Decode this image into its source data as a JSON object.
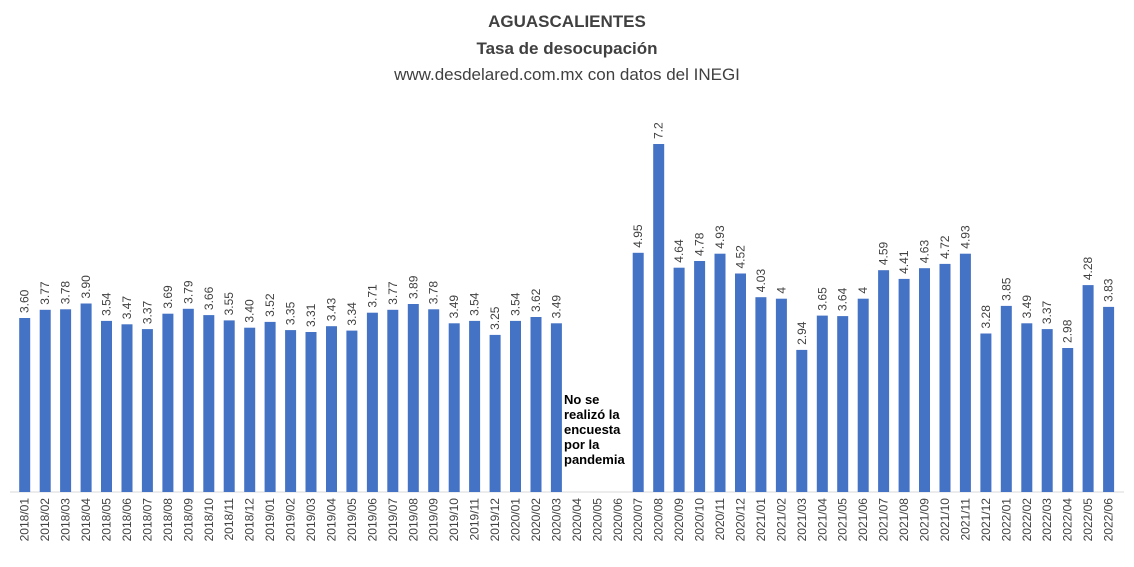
{
  "chart_data": {
    "type": "bar",
    "title": "AGUASCALIENTES",
    "subtitle": "Tasa de desocupación",
    "source": "www.desdelared.com.mx  con datos del INEGI",
    "note": "No se realizó la encuesta por la pandemia",
    "bar_color": "#4472C4",
    "grid": false,
    "categories": [
      "2018/01",
      "2018/02",
      "2018/03",
      "2018/04",
      "2018/05",
      "2018/06",
      "2018/07",
      "2018/08",
      "2018/09",
      "2018/10",
      "2018/11",
      "2018/12",
      "2019/01",
      "2019/02",
      "2019/03",
      "2019/04",
      "2019/05",
      "2019/06",
      "2019/07",
      "2019/08",
      "2019/09",
      "2019/10",
      "2019/11",
      "2019/12",
      "2020/01",
      "2020/02",
      "2020/03",
      "2020/04",
      "2020/05",
      "2020/06",
      "2020/07",
      "2020/08",
      "2020/09",
      "2020/10",
      "2020/11",
      "2020/12",
      "2021/01",
      "2021/02",
      "2021/03",
      "2021/04",
      "2021/05",
      "2021/06",
      "2021/07",
      "2021/08",
      "2021/09",
      "2021/10",
      "2021/11",
      "2021/12",
      "2022/01",
      "2022/02",
      "2022/03",
      "2022/04",
      "2022/05",
      "2022/06"
    ],
    "values": [
      3.6,
      3.77,
      3.78,
      3.9,
      3.54,
      3.47,
      3.37,
      3.69,
      3.79,
      3.66,
      3.55,
      3.4,
      3.52,
      3.35,
      3.31,
      3.43,
      3.34,
      3.71,
      3.77,
      3.89,
      3.78,
      3.49,
      3.54,
      3.25,
      3.54,
      3.62,
      3.49,
      null,
      null,
      null,
      4.95,
      7.2,
      4.64,
      4.78,
      4.93,
      4.52,
      4.03,
      4,
      2.94,
      3.65,
      3.64,
      4,
      4.59,
      4.41,
      4.63,
      4.72,
      4.93,
      3.28,
      3.85,
      3.49,
      3.37,
      2.98,
      4.28,
      3.83
    ],
    "labels": [
      "3.60",
      "3.77",
      "3.78",
      "3.90",
      "3.54",
      "3.47",
      "3.37",
      "3.69",
      "3.79",
      "3.66",
      "3.55",
      "3.40",
      "3.52",
      "3.35",
      "3.31",
      "3.43",
      "3.34",
      "3.71",
      "3.77",
      "3.89",
      "3.78",
      "3.49",
      "3.54",
      "3.25",
      "3.54",
      "3.62",
      "3.49",
      "",
      "",
      "",
      "4.95",
      "7.2",
      "4.64",
      "4.78",
      "4.93",
      "4.52",
      "4.03",
      "4",
      "2.94",
      "3.65",
      "3.64",
      "4",
      "4.59",
      "4.41",
      "4.63",
      "4.72",
      "4.93",
      "3.28",
      "3.85",
      "3.49",
      "3.37",
      "2.98",
      "4.28",
      "3.83"
    ],
    "ylim": [
      0,
      7.2
    ]
  }
}
